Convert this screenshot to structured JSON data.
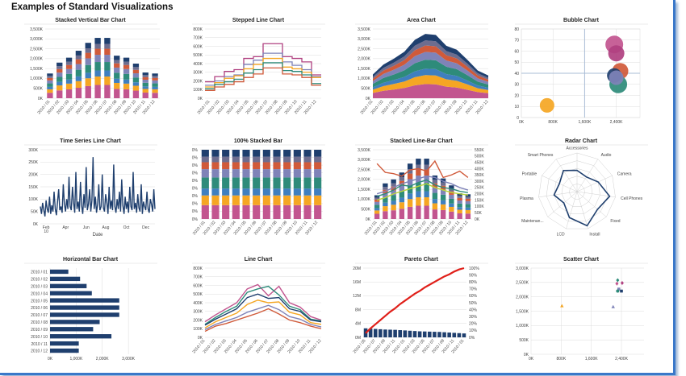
{
  "page": {
    "title": "Examples of Standard Visualizations"
  },
  "colors": [
    "#c2558f",
    "#f5a623",
    "#3f7fbf",
    "#2e8b7a",
    "#7f83b8",
    "#d05a3a",
    "#6d6d8f",
    "#1f3f6e"
  ],
  "charts": {
    "stacked_vertical_bar": {
      "type": "bar",
      "stacked": true,
      "title": "Stacked Vertical Bar Chart",
      "categories": [
        "2010 / 01",
        "2010 / 02",
        "2010 / 03",
        "2010 / 04",
        "2010 / 05",
        "2010 / 06",
        "2010 / 07",
        "2010 / 08",
        "2010 / 09",
        "2010 / 10",
        "2010 / 11",
        "2010 / 12"
      ],
      "totals": [
        1250,
        1800,
        2050,
        2400,
        2800,
        3050,
        3050,
        2150,
        2050,
        1750,
        1300,
        1250
      ],
      "yticks": [
        "0K",
        "500K",
        "1,000K",
        "1,500K",
        "2,000K",
        "2,500K",
        "3,000K",
        "3,500K"
      ],
      "ylim": [
        0,
        3500
      ]
    },
    "stepped_line": {
      "type": "line",
      "title": "Stepped Line Chart",
      "categories": [
        "2010 / 01",
        "2010 / 02",
        "2010 / 03",
        "2010 / 04",
        "2010 / 05",
        "2010 / 06",
        "2010 / 07",
        "2010 / 08",
        "2010 / 09",
        "2010 / 10",
        "2010 / 11",
        "2010 / 12"
      ],
      "yticks": [
        "0K",
        "100K",
        "200K",
        "300K",
        "400K",
        "500K",
        "600K",
        "700K",
        "800K"
      ],
      "ylim": [
        0,
        800
      ],
      "series": [
        {
          "values": [
            190,
            250,
            310,
            330,
            460,
            480,
            630,
            630,
            480,
            460,
            420,
            270
          ]
        },
        {
          "values": [
            150,
            200,
            250,
            270,
            390,
            440,
            520,
            520,
            420,
            380,
            330,
            250
          ]
        },
        {
          "values": [
            130,
            180,
            230,
            260,
            340,
            390,
            460,
            460,
            360,
            340,
            300,
            240
          ]
        },
        {
          "values": [
            110,
            160,
            190,
            220,
            290,
            330,
            410,
            410,
            320,
            310,
            270,
            170
          ]
        },
        {
          "values": [
            90,
            130,
            160,
            190,
            240,
            280,
            350,
            350,
            280,
            270,
            240,
            150
          ]
        }
      ]
    },
    "area": {
      "type": "area",
      "title": "Area Chart",
      "categories": [
        "2010 / 01",
        "2010 / 02",
        "2010 / 03",
        "2010 / 04",
        "2010 / 05",
        "2010 / 06",
        "2010 / 07",
        "2010 / 08",
        "2010 / 09",
        "2010 / 10",
        "2010 / 11",
        "2010 / 12"
      ],
      "totals": [
        1200,
        1700,
        2000,
        2350,
        2950,
        3250,
        3200,
        2650,
        2450,
        1950,
        1400,
        1150
      ],
      "yticks": [
        "0K",
        "500K",
        "1,000K",
        "1,500K",
        "2,000K",
        "2,500K",
        "3,000K",
        "3,500K"
      ],
      "ylim": [
        0,
        3500
      ]
    },
    "bubble": {
      "type": "scatter",
      "title": "Bubble Chart",
      "xticks": [
        "0K",
        "800K",
        "1,600K",
        "2,400K"
      ],
      "yticks": [
        "0",
        "10",
        "20",
        "30",
        "40",
        "50",
        "60",
        "70",
        "80"
      ],
      "xlim": [
        0,
        3000
      ],
      "ylim": [
        0,
        80
      ],
      "points": [
        {
          "x": 650,
          "y": 11,
          "r": 9,
          "color": "#f5a623"
        },
        {
          "x": 2350,
          "y": 66,
          "r": 11,
          "color": "#c2558f"
        },
        {
          "x": 2400,
          "y": 58,
          "r": 10,
          "color": "#b04080"
        },
        {
          "x": 2500,
          "y": 42,
          "r": 10,
          "color": "#d05a3a"
        },
        {
          "x": 2450,
          "y": 30,
          "r": 11,
          "color": "#2e8b7a"
        },
        {
          "x": 2350,
          "y": 38,
          "r": 9,
          "color": "#1f3f6e"
        },
        {
          "x": 2400,
          "y": 36,
          "r": 9,
          "color": "#7f83b8"
        }
      ]
    },
    "time_series": {
      "type": "line",
      "title": "Time Series Line Chart",
      "xticks": [
        "Feb\n10",
        "Apr",
        "Jun",
        "Aug",
        "Oct",
        "Dec"
      ],
      "yticks": [
        "0K",
        "50K",
        "100K",
        "150K",
        "200K",
        "250K",
        "300K"
      ],
      "ylim": [
        0,
        300
      ],
      "xlabel": "Date",
      "values": [
        70,
        40,
        85,
        55,
        30,
        95,
        60,
        45,
        110,
        40,
        75,
        50,
        130,
        60,
        35,
        90,
        140,
        55,
        70,
        45,
        160,
        80,
        50,
        100,
        60,
        190,
        70,
        55,
        150,
        85,
        45,
        210,
        60,
        90,
        50,
        170,
        75,
        40,
        120,
        65,
        230,
        55,
        80,
        140,
        50,
        95,
        270,
        60,
        110,
        45,
        80,
        160,
        55,
        70,
        200,
        65,
        50,
        120,
        85,
        40,
        150,
        60,
        95,
        55,
        240,
        70,
        45,
        100,
        60,
        130,
        50,
        180,
        75,
        40,
        110,
        60,
        90,
        45,
        150,
        70,
        55,
        210,
        60,
        85,
        45,
        120,
        65,
        50,
        160,
        40,
        90,
        70,
        55,
        130,
        60,
        45,
        100,
        80,
        50,
        140,
        60
      ]
    },
    "stacked_100": {
      "type": "bar",
      "title": "100% Stacked Bar",
      "categories": [
        "2010 / 01",
        "2010 / 02",
        "2010 / 03",
        "2010 / 04",
        "2010 / 05",
        "2010 / 06",
        "2010 / 07",
        "2010 / 08",
        "2010 / 09",
        "2010 / 10",
        "2010 / 11",
        "2010 / 12"
      ],
      "yticks": [
        "0%",
        "0%",
        "0%",
        "0%",
        "0%",
        "0%",
        "0%",
        "0%",
        "0%",
        "0%"
      ],
      "segments": [
        0.2,
        0.14,
        0.1,
        0.16,
        0.12,
        0.1,
        0.08,
        0.1
      ]
    },
    "stacked_line_bar": {
      "type": "bar",
      "title": "Stacked Line-Bar Chart",
      "categories": [
        "2010 / 01",
        "2010 / 02",
        "2010 / 03",
        "2010 / 04",
        "2010 / 05",
        "2010 / 06",
        "2010 / 07",
        "2010 / 08",
        "2010 / 09",
        "2010 / 10",
        "2010 / 11",
        "2010 / 12"
      ],
      "totals": [
        1200,
        1800,
        2000,
        2350,
        2800,
        3050,
        3050,
        2200,
        2050,
        1700,
        1300,
        1250
      ],
      "yticks": [
        "0K",
        "500K",
        "1,000K",
        "1,500K",
        "2,000K",
        "2,500K",
        "3,000K",
        "3,500K"
      ],
      "y2ticks": [
        "0K",
        "50K",
        "100K",
        "150K",
        "200K",
        "250K",
        "300K",
        "350K",
        "400K",
        "450K",
        "500K",
        "550K"
      ],
      "ylim": [
        0,
        3500
      ],
      "y2lim": [
        0,
        550
      ],
      "lines": [
        {
          "values": [
            440,
            370,
            360,
            340,
            390,
            400,
            380,
            460,
            330,
            350,
            380,
            330
          ],
          "color": "#d05a3a"
        },
        {
          "values": [
            200,
            220,
            250,
            280,
            300,
            320,
            340,
            330,
            300,
            280,
            250,
            230
          ],
          "color": "#7f83b8"
        },
        {
          "values": [
            180,
            200,
            230,
            270,
            260,
            290,
            310,
            270,
            250,
            240,
            220,
            210
          ],
          "color": "#2e8b7a"
        },
        {
          "values": [
            150,
            170,
            200,
            220,
            240,
            260,
            280,
            250,
            230,
            210,
            200,
            190
          ],
          "color": "#b8d43a"
        }
      ]
    },
    "radar": {
      "type": "radar",
      "title": "Radar Chart",
      "axes": [
        "Accessories",
        "Audio",
        "Camera",
        "Cell Phones",
        "Fixed",
        "Install",
        "LCD",
        "Maintenan...",
        "Plasma",
        "Portable",
        "Smart Phones"
      ],
      "values": [
        0.55,
        0.45,
        0.6,
        0.85,
        0.7,
        0.92,
        0.7,
        0.45,
        0.6,
        0.5,
        0.65
      ]
    },
    "horizontal_bar": {
      "type": "bar",
      "title": "Horizontal Bar Chart",
      "categories": [
        "2010 / 01",
        "2010 / 02",
        "2010 / 03",
        "2010 / 04",
        "2010 / 05",
        "2010 / 06",
        "2010 / 07",
        "2010 / 08",
        "2010 / 09",
        "2010 / 10",
        "2010 / 11",
        "2010 / 12"
      ],
      "values": [
        700,
        1150,
        1400,
        1600,
        2650,
        2650,
        2650,
        1900,
        1650,
        2350,
        1100,
        1100
      ],
      "xticks": [
        "0K",
        "1,000K",
        "2,000K",
        "3,000K"
      ],
      "xlim": [
        0,
        3800
      ]
    },
    "line": {
      "type": "line",
      "title": "Line Chart",
      "categories": [
        "2010 / 01",
        "2010 / 02",
        "2010 / 03",
        "2010 / 04",
        "2010 / 05",
        "2010 / 06",
        "2010 / 07",
        "2010 / 08",
        "2010 / 09",
        "2010 / 10",
        "2010 / 11",
        "2010 / 12"
      ],
      "yticks": [
        "0K",
        "100K",
        "200K",
        "300K",
        "400K",
        "500K",
        "600K",
        "700K",
        "800K"
      ],
      "ylim": [
        0,
        800
      ],
      "series": [
        {
          "values": [
            180,
            260,
            330,
            400,
            560,
            610,
            480,
            590,
            400,
            350,
            240,
            200
          ],
          "color": "#c2558f"
        },
        {
          "values": [
            150,
            230,
            300,
            360,
            520,
            560,
            590,
            490,
            360,
            320,
            210,
            190
          ],
          "color": "#2e8b7a"
        },
        {
          "values": [
            140,
            210,
            270,
            330,
            460,
            500,
            450,
            460,
            330,
            300,
            200,
            180
          ],
          "color": "#1f3f6e"
        },
        {
          "values": [
            110,
            180,
            230,
            280,
            380,
            430,
            400,
            410,
            290,
            260,
            170,
            150
          ],
          "color": "#f5a623"
        },
        {
          "values": [
            90,
            150,
            190,
            230,
            290,
            330,
            370,
            320,
            240,
            210,
            150,
            120
          ],
          "color": "#7f83b8"
        },
        {
          "values": [
            70,
            130,
            160,
            200,
            240,
            280,
            330,
            270,
            200,
            170,
            130,
            100
          ],
          "color": "#d05a3a"
        }
      ]
    },
    "pareto": {
      "type": "bar",
      "title": "Pareto Chart",
      "categories": [
        "2010 / 05",
        "2010 / 06",
        "2010 / 07",
        "2010 / 08",
        "2010 / 09",
        "2010 / 10",
        "2010 / 11",
        "2010 / 12",
        "2010 / 01",
        "2010 / 02",
        "2010 / 03",
        "2010 / 04",
        "2010 / 05",
        "2010 / 06",
        "2010 / 07",
        "2010 / 08",
        "2010 / 09",
        "2010 / 10",
        "2010 / 11",
        "2010 / 12",
        "2010 / 01"
      ],
      "values": [
        3.0,
        2.9,
        2.8,
        2.7,
        2.6,
        2.55,
        2.5,
        2.4,
        2.3,
        2.2,
        2.1,
        2.0,
        1.95,
        1.9,
        1.85,
        1.8,
        1.7,
        1.6,
        1.5,
        1.4,
        1.3
      ],
      "cumulative": [
        6,
        13,
        19,
        25,
        31,
        37,
        42,
        48,
        53,
        58,
        63,
        67,
        72,
        76,
        80,
        84,
        88,
        91,
        95,
        98,
        100
      ],
      "yticks": [
        "0M",
        "4M",
        "8M",
        "12M",
        "16M",
        "20M"
      ],
      "y2ticks": [
        "0%",
        "10%",
        "20%",
        "30%",
        "40%",
        "50%",
        "60%",
        "70%",
        "80%",
        "90%",
        "100%"
      ],
      "ylim": [
        0,
        23
      ]
    },
    "scatter": {
      "type": "scatter",
      "title": "Scatter Chart",
      "xticks": [
        "0K",
        "800K",
        "1,600K",
        "2,400K"
      ],
      "yticks": [
        "0K",
        "500K",
        "1,000K",
        "1,500K",
        "2,000K",
        "2,500K",
        "3,000K"
      ],
      "xlim": [
        0,
        3000
      ],
      "ylim": [
        0,
        3000
      ],
      "points": [
        {
          "x": 2300,
          "y": 2580,
          "color": "#2e8b7a",
          "shape": "diamond"
        },
        {
          "x": 2280,
          "y": 2460,
          "color": "#c2558f",
          "shape": "diamond"
        },
        {
          "x": 2420,
          "y": 2480,
          "color": "#b04080",
          "shape": "diamond"
        },
        {
          "x": 2330,
          "y": 2270,
          "color": "#7f83b8",
          "shape": "square"
        },
        {
          "x": 2400,
          "y": 2200,
          "color": "#1f3f6e",
          "shape": "square"
        },
        {
          "x": 2300,
          "y": 2200,
          "color": "#2e8b7a",
          "shape": "circle"
        },
        {
          "x": 820,
          "y": 1680,
          "color": "#f5a623",
          "shape": "triangle"
        },
        {
          "x": 2180,
          "y": 1650,
          "color": "#7f83b8",
          "shape": "triangle"
        }
      ]
    }
  }
}
